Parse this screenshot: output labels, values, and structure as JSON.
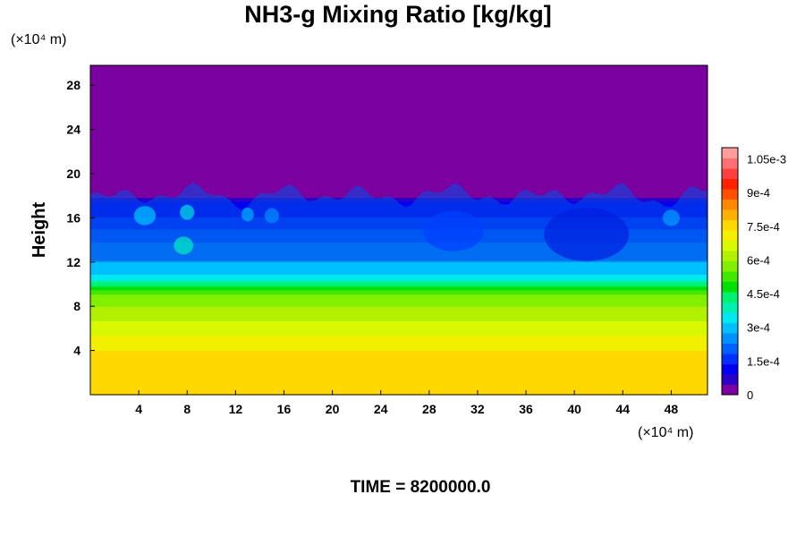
{
  "chart_data": {
    "type": "heatmap",
    "title": "NH3-g Mixing Ratio [kg/kg]",
    "ylabel": "Height",
    "x_unit": "(×10⁴ m)",
    "y_unit": "(×10⁴ m)",
    "time_label": "TIME = 8200000.0",
    "xlim": [
      0,
      51
    ],
    "ylim": [
      0,
      29.8
    ],
    "x_ticks": [
      4,
      8,
      12,
      16,
      20,
      24,
      28,
      32,
      36,
      40,
      44,
      48
    ],
    "y_ticks": [
      4,
      8,
      12,
      16,
      20,
      24,
      28
    ],
    "colorbar": {
      "min": 0,
      "max": 0.0011,
      "tick_values": [
        0,
        0.00015,
        0.0003,
        0.00045,
        0.0006,
        0.00075,
        0.0009,
        0.00105
      ],
      "tick_labels": [
        "0",
        "1.5e-4",
        "3e-4",
        "4.5e-4",
        "6e-4",
        "7.5e-4",
        "9e-4",
        "1.05e-3"
      ],
      "colors": [
        "#7a00a0",
        "#2a00c8",
        "#0000f0",
        "#0030ff",
        "#0060ff",
        "#0090ff",
        "#00c0ff",
        "#00e8f0",
        "#00f0b0",
        "#00f070",
        "#00e000",
        "#40e800",
        "#80f000",
        "#b0f000",
        "#d8f800",
        "#f0f000",
        "#ffd800",
        "#ffb000",
        "#ff8800",
        "#ff5000",
        "#ff2000",
        "#ff4040",
        "#ff7070",
        "#ff9c9c"
      ]
    },
    "profile": {
      "height": [
        0,
        3.5,
        5,
        7,
        9,
        10.2,
        10.6,
        12,
        13.5,
        15,
        16.5,
        17.8,
        18.5,
        29.8
      ],
      "value": [
        0.00075,
        0.00075,
        0.0007,
        0.00063,
        0.00056,
        0.0004,
        0.00033,
        0.00028,
        0.00024,
        0.00018,
        0.00012,
        8e-05,
        0.0,
        0.0
      ]
    }
  }
}
